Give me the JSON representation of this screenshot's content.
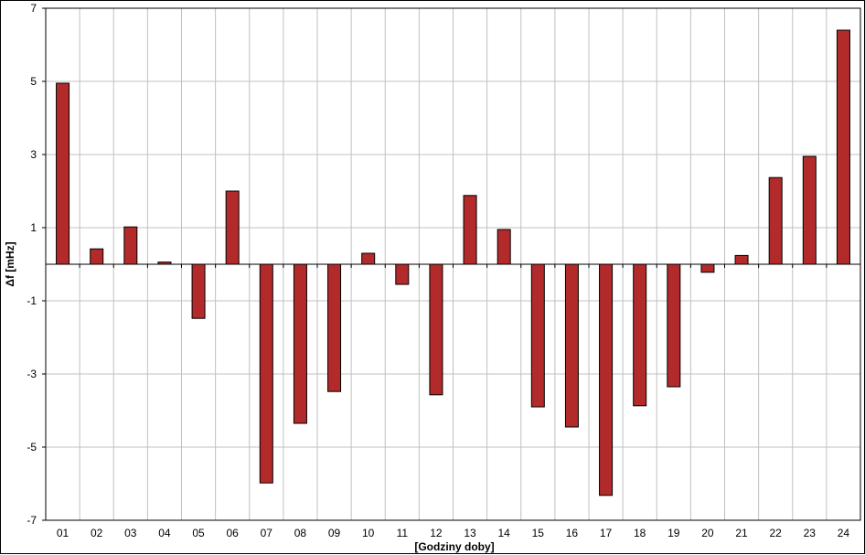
{
  "chart_data": {
    "type": "bar",
    "title": "",
    "xlabel": "[Godziny doby]",
    "ylabel": "Δf [mHz]",
    "categories": [
      "01",
      "02",
      "03",
      "04",
      "05",
      "06",
      "07",
      "08",
      "09",
      "10",
      "11",
      "12",
      "13",
      "14",
      "15",
      "16",
      "17",
      "18",
      "19",
      "20",
      "21",
      "22",
      "23",
      "24"
    ],
    "series": [
      {
        "values": [
          4.95,
          0.42,
          1.02,
          0.06,
          -1.48,
          2.0,
          -5.98,
          -4.35,
          -3.48,
          0.3,
          -0.55,
          -3.57,
          1.88,
          0.95,
          -3.9,
          -4.45,
          -6.32,
          -3.87,
          -3.35,
          -0.22,
          0.24,
          2.37,
          2.95,
          6.4
        ]
      }
    ],
    "ylim": [
      -7,
      7
    ],
    "yticks": [
      7,
      5,
      3,
      1,
      -1,
      -3,
      -5,
      -7
    ],
    "grid": true,
    "legend": "none",
    "colors": {
      "bar_fill": "#B22A2A",
      "bar_stroke": "#000000",
      "grid": "#C0C0C0",
      "plot_background": "#FFFFFF",
      "axis": "#000000"
    }
  }
}
